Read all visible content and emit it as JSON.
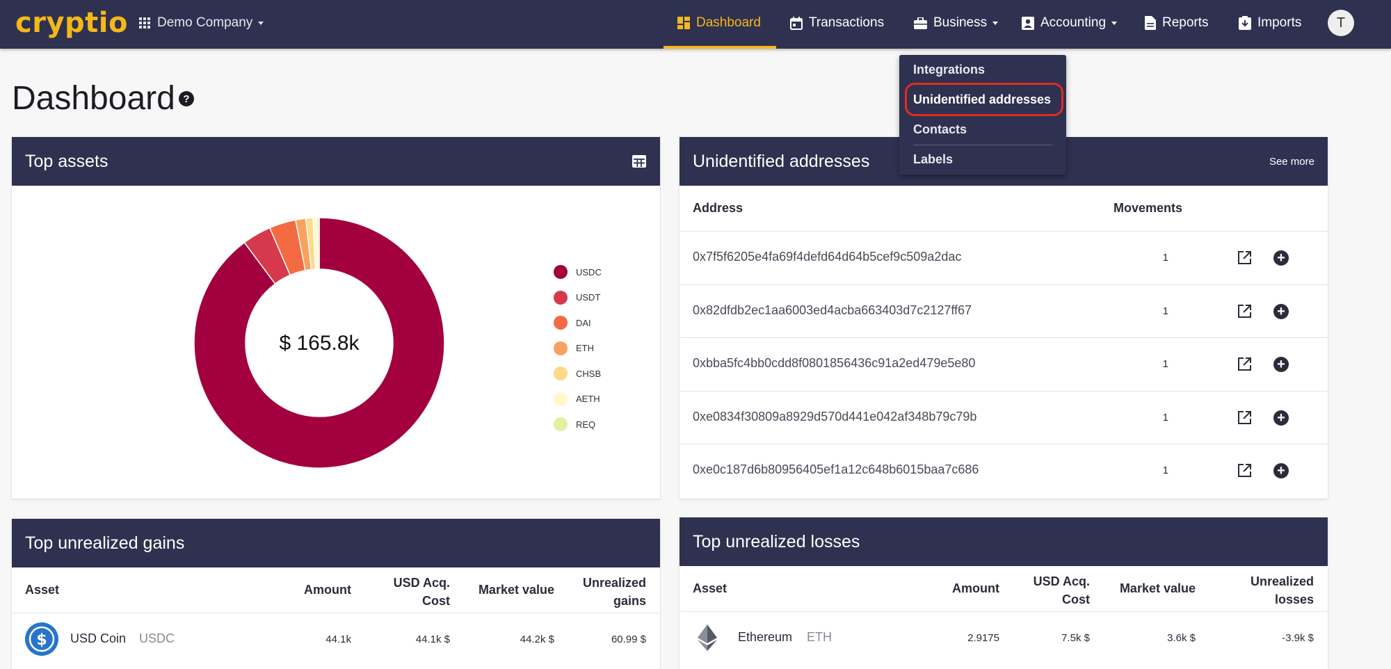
{
  "brand": {
    "logo": "cryptio",
    "accent": "#f5b819",
    "nav_bg": "#2f3150"
  },
  "company": {
    "name": "Demo Company",
    "icon": "grid-icon"
  },
  "nav": {
    "items": [
      {
        "label": "Dashboard",
        "icon": "dashboard-icon",
        "active": true
      },
      {
        "label": "Transactions",
        "icon": "calendar-icon"
      },
      {
        "label": "Business",
        "icon": "briefcase-icon",
        "has_menu": true
      },
      {
        "label": "Accounting",
        "icon": "contact-card-icon",
        "has_menu": true
      },
      {
        "label": "Reports",
        "icon": "document-icon"
      },
      {
        "label": "Imports",
        "icon": "import-icon"
      }
    ],
    "avatar": "T"
  },
  "business_menu": {
    "items": [
      "Integrations",
      "Unidentified addresses",
      "Contacts",
      "Labels"
    ],
    "highlighted": "Unidentified addresses"
  },
  "page": {
    "title": "Dashboard",
    "help": "?"
  },
  "top_assets": {
    "title": "Top assets",
    "center_label": "$ 165.8k",
    "chart_data": {
      "type": "pie",
      "style": "donut",
      "categories": [
        "USDC",
        "USDT",
        "DAI",
        "ETH",
        "CHSB",
        "AETH",
        "REQ"
      ],
      "values": [
        88.9,
        3.7,
        3.4,
        1.3,
        0.9,
        0.5,
        0.3
      ],
      "colors": [
        "#a3003f",
        "#d6394b",
        "#f26b43",
        "#f9a160",
        "#fdd989",
        "#fff8c9",
        "#e4efa0"
      ],
      "legend": "right"
    }
  },
  "unidentified": {
    "title": "Unidentified addresses",
    "see_more": "See more",
    "columns": {
      "address": "Address",
      "movements": "Movements"
    },
    "rows": [
      {
        "address": "0x7f5f6205e4fa69f4defd64d64b5cef9c509a2dac",
        "movements": "1"
      },
      {
        "address": "0x82dfdb2ec1aa6003ed4acba663403d7c2127ff67",
        "movements": "1"
      },
      {
        "address": "0xbba5fc4bb0cdd8f0801856436c91a2ed479e5e80",
        "movements": "1"
      },
      {
        "address": "0xe0834f30809a8929d570d441e042af348b79c79b",
        "movements": "1"
      },
      {
        "address": "0xe0c187d6b80956405ef1a12c648b6015baa7c686",
        "movements": "1"
      }
    ]
  },
  "gains": {
    "title": "Top unrealized gains",
    "columns": {
      "asset": "Asset",
      "amount": "Amount",
      "acq1": "USD Acq.",
      "acq2": "Cost",
      "market": "Market value",
      "unreal1": "Unrealized",
      "unreal2": "gains"
    },
    "rows": [
      {
        "name": "USD Coin",
        "symbol": "USDC",
        "icon": "usd-coin-icon",
        "amount": "44.1k",
        "acq": "44.1k $",
        "market": "44.2k $",
        "unrealized": "60.99 $"
      }
    ]
  },
  "losses": {
    "title": "Top unrealized losses",
    "columns": {
      "asset": "Asset",
      "amount": "Amount",
      "acq1": "USD Acq.",
      "acq2": "Cost",
      "market": "Market value",
      "unreal1": "Unrealized",
      "unreal2": "losses"
    },
    "rows": [
      {
        "name": "Ethereum",
        "symbol": "ETH",
        "icon": "ethereum-icon",
        "amount": "2.9175",
        "acq": "7.5k $",
        "market": "3.6k $",
        "unrealized": "-3.9k $"
      }
    ]
  }
}
